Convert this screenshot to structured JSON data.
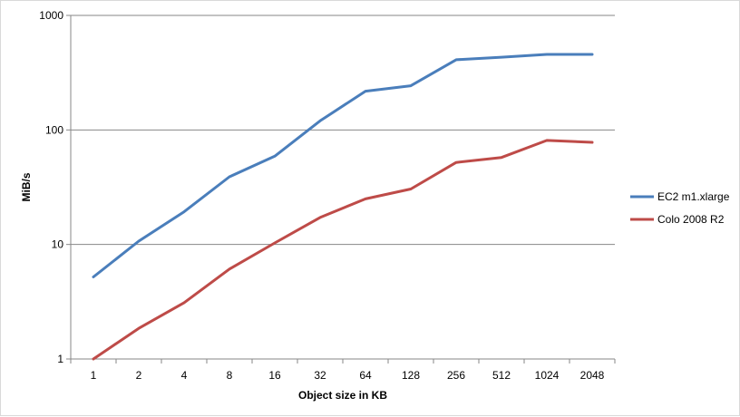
{
  "chart_data": {
    "type": "line",
    "title": "",
    "xlabel": "Object size in KB",
    "ylabel": "MiB/s",
    "y_scale": "log",
    "ylim": [
      1,
      1000
    ],
    "yticks": [
      "1",
      "10",
      "100",
      "1000"
    ],
    "grid": "horizontal",
    "legend_position": "right",
    "categories": [
      "1",
      "2",
      "4",
      "8",
      "16",
      "32",
      "64",
      "128",
      "256",
      "512",
      "1024",
      "2048"
    ],
    "series": [
      {
        "name": "EC2 m1.xlarge",
        "color": "#4a7ebb",
        "values": [
          5.2,
          10.7,
          19.3,
          39,
          59,
          120,
          218,
          243,
          410,
          432,
          457,
          457
        ]
      },
      {
        "name": "Colo 2008 R2",
        "color": "#be4b48",
        "values": [
          1.0,
          1.85,
          3.1,
          6.1,
          10.3,
          17.2,
          25,
          30.5,
          52,
          57.5,
          81,
          78
        ]
      }
    ]
  }
}
